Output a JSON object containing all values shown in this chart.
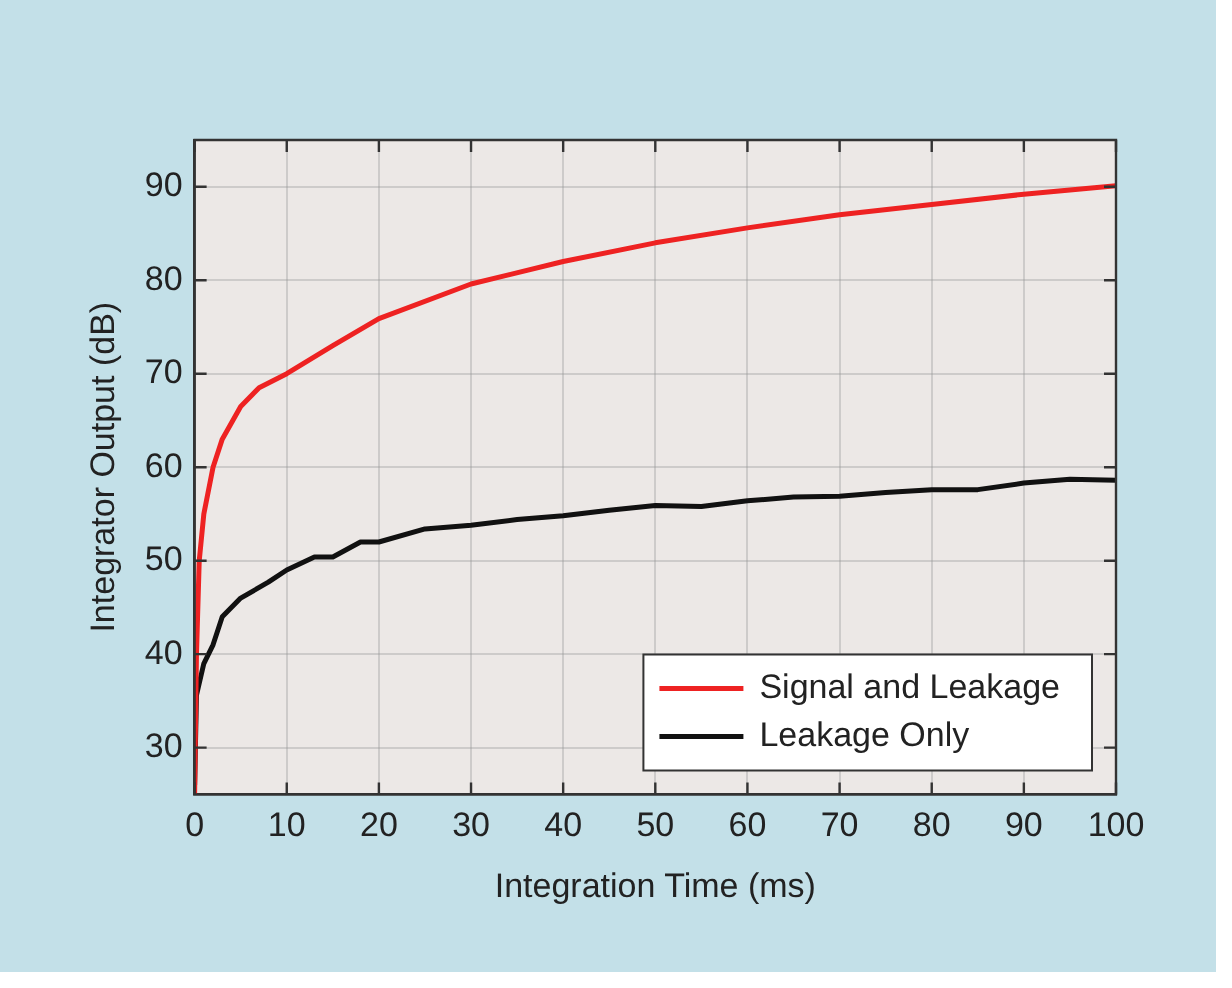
{
  "chart_data": {
    "type": "line",
    "xlabel": "Integration Time (ms)",
    "ylabel": "Integrator Output (dB)",
    "xlim": [
      0,
      100
    ],
    "xticks": [
      0,
      10,
      20,
      30,
      40,
      50,
      60,
      70,
      80,
      90,
      100
    ],
    "ylim": [
      25,
      95
    ],
    "yticks": [
      30,
      40,
      50,
      60,
      70,
      80,
      90
    ],
    "grid": true,
    "legend": "bottom right",
    "marker": "none",
    "line_style": "solid",
    "series": [
      {
        "name": "Signal and Leakage",
        "color": "#ee2222",
        "x": [
          0,
          0.2,
          0.5,
          1,
          2,
          3,
          5,
          7,
          10,
          15,
          20,
          30,
          40,
          50,
          60,
          70,
          80,
          90,
          100
        ],
        "values": [
          25,
          40,
          50,
          55,
          60,
          63,
          66.5,
          68.5,
          70,
          73,
          75.9,
          79.6,
          82,
          84,
          85.6,
          87,
          88.1,
          89.2,
          90.1
        ]
      },
      {
        "name": "Leakage Only",
        "color": "#111111",
        "x": [
          0,
          0.2,
          1,
          2,
          3,
          5,
          8,
          10,
          13,
          15,
          18,
          20,
          25,
          30,
          35,
          40,
          45,
          50,
          55,
          60,
          65,
          70,
          75,
          80,
          85,
          90,
          95,
          100
        ],
        "values": [
          26,
          35.6,
          39,
          41,
          44,
          46,
          47.7,
          49,
          50.4,
          50.4,
          52,
          52,
          53.4,
          53.8,
          54.4,
          54.8,
          55.4,
          55.9,
          55.8,
          56.4,
          56.8,
          56.9,
          57.3,
          57.6,
          57.6,
          58.3,
          58.7,
          58.6
        ]
      }
    ]
  }
}
